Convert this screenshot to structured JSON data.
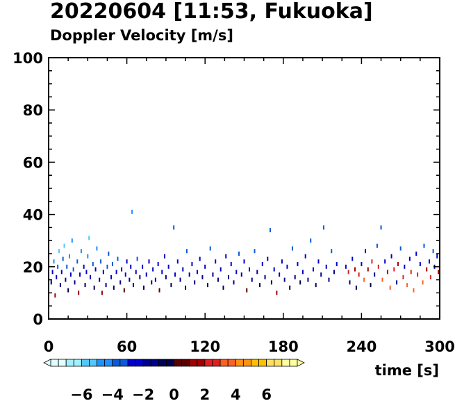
{
  "chart_data": {
    "type": "scatter",
    "title": "20220604 [11:53, Fukuoka]",
    "subtitle": "Doppler Velocity [m/s]",
    "xlabel": "time [s]",
    "ylabel": "",
    "xlim": [
      0,
      300
    ],
    "ylim": [
      0,
      100
    ],
    "x_ticks": [
      0,
      60,
      120,
      180,
      240,
      300
    ],
    "y_ticks": [
      0,
      20,
      40,
      60,
      80,
      100
    ],
    "grid": false,
    "colorbar": {
      "orientation": "horizontal",
      "position": "bottom",
      "vmin": -8,
      "vmax": 8,
      "step": 0.5,
      "ticks": [
        -6,
        -4,
        -2,
        0,
        2,
        4,
        6
      ],
      "tick_labels": [
        "−6",
        "−4",
        "−2",
        "0",
        "2",
        "4",
        "6"
      ],
      "colors_negative": [
        "#e0ffff",
        "#a0f0ff",
        "#50c8ff",
        "#1e90ff",
        "#0a5ad8",
        "#0000cd",
        "#00008b",
        "#000050"
      ],
      "colors_positive": [
        "#5a0000",
        "#a00000",
        "#e02020",
        "#ff6020",
        "#ff9010",
        "#ffc000",
        "#ffe060",
        "#ffffa0"
      ]
    },
    "points": [
      {
        "x": 2,
        "y": 14,
        "v": -2.0
      },
      {
        "x": 3,
        "y": 18,
        "v": -3.0
      },
      {
        "x": 4,
        "y": 22,
        "v": -4.5
      },
      {
        "x": 5,
        "y": 9,
        "v": 1.8
      },
      {
        "x": 6,
        "y": 16,
        "v": -2.5
      },
      {
        "x": 7,
        "y": 20,
        "v": -3.5
      },
      {
        "x": 8,
        "y": 26,
        "v": -5.5
      },
      {
        "x": 9,
        "y": 13,
        "v": -1.2
      },
      {
        "x": 10,
        "y": 18,
        "v": -3.0
      },
      {
        "x": 11,
        "y": 23,
        "v": -4.0
      },
      {
        "x": 12,
        "y": 28,
        "v": -6.0
      },
      {
        "x": 13,
        "y": 15,
        "v": -2.0
      },
      {
        "x": 14,
        "y": 20,
        "v": -3.5
      },
      {
        "x": 15,
        "y": 11,
        "v": -0.5
      },
      {
        "x": 16,
        "y": 24,
        "v": -4.5
      },
      {
        "x": 17,
        "y": 17,
        "v": -2.8
      },
      {
        "x": 18,
        "y": 30,
        "v": -5.0
      },
      {
        "x": 19,
        "y": 19,
        "v": -3.2
      },
      {
        "x": 20,
        "y": 14,
        "v": -1.5
      },
      {
        "x": 22,
        "y": 22,
        "v": -3.8
      },
      {
        "x": 23,
        "y": 10,
        "v": 1.5
      },
      {
        "x": 24,
        "y": 17,
        "v": -2.6
      },
      {
        "x": 25,
        "y": 26,
        "v": -4.8
      },
      {
        "x": 27,
        "y": 20,
        "v": -3.0
      },
      {
        "x": 28,
        "y": 13,
        "v": -1.0
      },
      {
        "x": 29,
        "y": 18,
        "v": -2.4
      },
      {
        "x": 30,
        "y": 24,
        "v": -4.2
      },
      {
        "x": 31,
        "y": 31,
        "v": -5.5
      },
      {
        "x": 32,
        "y": 16,
        "v": -2.2
      },
      {
        "x": 34,
        "y": 21,
        "v": -3.4
      },
      {
        "x": 35,
        "y": 12,
        "v": -0.8
      },
      {
        "x": 36,
        "y": 19,
        "v": -2.9
      },
      {
        "x": 37,
        "y": 27,
        "v": -4.6
      },
      {
        "x": 39,
        "y": 15,
        "v": -1.8
      },
      {
        "x": 40,
        "y": 22,
        "v": -3.6
      },
      {
        "x": 41,
        "y": 10,
        "v": 1.2
      },
      {
        "x": 42,
        "y": 18,
        "v": -2.7
      },
      {
        "x": 44,
        "y": 13,
        "v": -1.4
      },
      {
        "x": 45,
        "y": 20,
        "v": -3.1
      },
      {
        "x": 46,
        "y": 25,
        "v": -4.0
      },
      {
        "x": 48,
        "y": 16,
        "v": -2.3
      },
      {
        "x": 49,
        "y": 21,
        "v": -3.3
      },
      {
        "x": 50,
        "y": 12,
        "v": -0.6
      },
      {
        "x": 52,
        "y": 18,
        "v": -2.5
      },
      {
        "x": 53,
        "y": 23,
        "v": -3.5
      },
      {
        "x": 55,
        "y": 14,
        "v": -1.6
      },
      {
        "x": 56,
        "y": 19,
        "v": -2.8
      },
      {
        "x": 58,
        "y": 11,
        "v": 0.8
      },
      {
        "x": 59,
        "y": 17,
        "v": -2.2
      },
      {
        "x": 60,
        "y": 22,
        "v": -3.0
      },
      {
        "x": 62,
        "y": 15,
        "v": -1.9
      },
      {
        "x": 63,
        "y": 20,
        "v": -2.6
      },
      {
        "x": 64,
        "y": 41,
        "v": -4.2
      },
      {
        "x": 65,
        "y": 13,
        "v": -1.1
      },
      {
        "x": 67,
        "y": 18,
        "v": -2.4
      },
      {
        "x": 68,
        "y": 23,
        "v": -3.2
      },
      {
        "x": 70,
        "y": 16,
        "v": -2.0
      },
      {
        "x": 72,
        "y": 20,
        "v": -2.7
      },
      {
        "x": 73,
        "y": 12,
        "v": -0.7
      },
      {
        "x": 75,
        "y": 17,
        "v": -2.1
      },
      {
        "x": 77,
        "y": 22,
        "v": -2.9
      },
      {
        "x": 79,
        "y": 14,
        "v": -1.3
      },
      {
        "x": 80,
        "y": 19,
        "v": -2.5
      },
      {
        "x": 82,
        "y": 15,
        "v": -1.7
      },
      {
        "x": 84,
        "y": 21,
        "v": -2.8
      },
      {
        "x": 85,
        "y": 11,
        "v": 0.6
      },
      {
        "x": 87,
        "y": 18,
        "v": -2.3
      },
      {
        "x": 89,
        "y": 24,
        "v": -3.0
      },
      {
        "x": 90,
        "y": 16,
        "v": -1.9
      },
      {
        "x": 92,
        "y": 20,
        "v": -2.6
      },
      {
        "x": 94,
        "y": 13,
        "v": -1.0
      },
      {
        "x": 96,
        "y": 35,
        "v": -3.8
      },
      {
        "x": 97,
        "y": 17,
        "v": -2.1
      },
      {
        "x": 99,
        "y": 22,
        "v": -2.7
      },
      {
        "x": 101,
        "y": 15,
        "v": -1.6
      },
      {
        "x": 103,
        "y": 19,
        "v": -2.3
      },
      {
        "x": 105,
        "y": 12,
        "v": -0.5
      },
      {
        "x": 106,
        "y": 26,
        "v": -3.3
      },
      {
        "x": 108,
        "y": 17,
        "v": -2.0
      },
      {
        "x": 110,
        "y": 21,
        "v": -2.6
      },
      {
        "x": 112,
        "y": 14,
        "v": -1.2
      },
      {
        "x": 114,
        "y": 18,
        "v": -2.2
      },
      {
        "x": 116,
        "y": 23,
        "v": -2.9
      },
      {
        "x": 118,
        "y": 16,
        "v": -1.8
      },
      {
        "x": 120,
        "y": 20,
        "v": -2.5
      },
      {
        "x": 122,
        "y": 13,
        "v": -0.9
      },
      {
        "x": 124,
        "y": 27,
        "v": -3.4
      },
      {
        "x": 126,
        "y": 17,
        "v": -2.0
      },
      {
        "x": 128,
        "y": 22,
        "v": -2.7
      },
      {
        "x": 130,
        "y": 15,
        "v": -1.5
      },
      {
        "x": 132,
        "y": 19,
        "v": -2.3
      },
      {
        "x": 134,
        "y": 12,
        "v": -0.6
      },
      {
        "x": 136,
        "y": 24,
        "v": -3.0
      },
      {
        "x": 138,
        "y": 16,
        "v": -1.8
      },
      {
        "x": 140,
        "y": 21,
        "v": -2.5
      },
      {
        "x": 142,
        "y": 14,
        "v": -1.1
      },
      {
        "x": 144,
        "y": 18,
        "v": -2.1
      },
      {
        "x": 146,
        "y": 25,
        "v": -3.1
      },
      {
        "x": 148,
        "y": 17,
        "v": -1.9
      },
      {
        "x": 150,
        "y": 22,
        "v": -2.6
      },
      {
        "x": 152,
        "y": 11,
        "v": 0.9
      },
      {
        "x": 154,
        "y": 19,
        "v": -2.2
      },
      {
        "x": 156,
        "y": 15,
        "v": -1.4
      },
      {
        "x": 158,
        "y": 26,
        "v": -3.2
      },
      {
        "x": 160,
        "y": 18,
        "v": -2.0
      },
      {
        "x": 162,
        "y": 13,
        "v": -0.8
      },
      {
        "x": 164,
        "y": 21,
        "v": -2.5
      },
      {
        "x": 166,
        "y": 16,
        "v": -1.7
      },
      {
        "x": 168,
        "y": 23,
        "v": -2.8
      },
      {
        "x": 170,
        "y": 34,
        "v": -3.6
      },
      {
        "x": 171,
        "y": 14,
        "v": -1.0
      },
      {
        "x": 173,
        "y": 19,
        "v": -2.3
      },
      {
        "x": 175,
        "y": 10,
        "v": 1.4
      },
      {
        "x": 177,
        "y": 17,
        "v": -1.9
      },
      {
        "x": 179,
        "y": 22,
        "v": -2.6
      },
      {
        "x": 181,
        "y": 15,
        "v": -1.3
      },
      {
        "x": 183,
        "y": 20,
        "v": -2.4
      },
      {
        "x": 185,
        "y": 12,
        "v": -0.4
      },
      {
        "x": 187,
        "y": 27,
        "v": -3.3
      },
      {
        "x": 189,
        "y": 16,
        "v": -1.6
      },
      {
        "x": 191,
        "y": 21,
        "v": -2.5
      },
      {
        "x": 193,
        "y": 14,
        "v": -1.0
      },
      {
        "x": 195,
        "y": 18,
        "v": -2.1
      },
      {
        "x": 197,
        "y": 24,
        "v": -2.9
      },
      {
        "x": 199,
        "y": 15,
        "v": -1.2
      },
      {
        "x": 201,
        "y": 30,
        "v": -3.4
      },
      {
        "x": 203,
        "y": 19,
        "v": -2.2
      },
      {
        "x": 205,
        "y": 13,
        "v": -0.6
      },
      {
        "x": 207,
        "y": 22,
        "v": -2.7
      },
      {
        "x": 209,
        "y": 17,
        "v": -1.8
      },
      {
        "x": 211,
        "y": 35,
        "v": -3.8
      },
      {
        "x": 213,
        "y": 20,
        "v": -2.3
      },
      {
        "x": 215,
        "y": 15,
        "v": -1.1
      },
      {
        "x": 217,
        "y": 26,
        "v": -3.1
      },
      {
        "x": 219,
        "y": 18,
        "v": -2.0
      },
      {
        "x": 221,
        "y": 21,
        "v": -2.4
      },
      {
        "x": 228,
        "y": 20,
        "v": -2.3
      },
      {
        "x": 230,
        "y": 18,
        "v": 2.5
      },
      {
        "x": 231,
        "y": 14,
        "v": -1.5
      },
      {
        "x": 233,
        "y": 23,
        "v": -2.8
      },
      {
        "x": 235,
        "y": 19,
        "v": 1.8
      },
      {
        "x": 236,
        "y": 12,
        "v": -0.5
      },
      {
        "x": 238,
        "y": 17,
        "v": 2.2
      },
      {
        "x": 240,
        "y": 21,
        "v": -2.4
      },
      {
        "x": 242,
        "y": 15,
        "v": 3.0
      },
      {
        "x": 243,
        "y": 26,
        "v": -3.0
      },
      {
        "x": 245,
        "y": 19,
        "v": 1.5
      },
      {
        "x": 247,
        "y": 13,
        "v": -0.8
      },
      {
        "x": 248,
        "y": 22,
        "v": 2.8
      },
      {
        "x": 250,
        "y": 17,
        "v": -1.9
      },
      {
        "x": 252,
        "y": 28,
        "v": -3.4
      },
      {
        "x": 253,
        "y": 20,
        "v": 2.0
      },
      {
        "x": 255,
        "y": 35,
        "v": -3.9
      },
      {
        "x": 256,
        "y": 15,
        "v": 3.2
      },
      {
        "x": 258,
        "y": 22,
        "v": -2.6
      },
      {
        "x": 260,
        "y": 18,
        "v": 1.2
      },
      {
        "x": 262,
        "y": 12,
        "v": 3.5
      },
      {
        "x": 263,
        "y": 24,
        "v": -2.9
      },
      {
        "x": 265,
        "y": 19,
        "v": 2.4
      },
      {
        "x": 267,
        "y": 14,
        "v": -1.1
      },
      {
        "x": 268,
        "y": 21,
        "v": 1.7
      },
      {
        "x": 270,
        "y": 27,
        "v": -3.2
      },
      {
        "x": 272,
        "y": 16,
        "v": 2.9
      },
      {
        "x": 273,
        "y": 20,
        "v": -2.2
      },
      {
        "x": 275,
        "y": 13,
        "v": 3.3
      },
      {
        "x": 277,
        "y": 23,
        "v": -2.7
      },
      {
        "x": 278,
        "y": 18,
        "v": 2.1
      },
      {
        "x": 280,
        "y": 11,
        "v": 3.8
      },
      {
        "x": 282,
        "y": 25,
        "v": -3.0
      },
      {
        "x": 283,
        "y": 17,
        "v": 2.6
      },
      {
        "x": 285,
        "y": 21,
        "v": -2.3
      },
      {
        "x": 287,
        "y": 14,
        "v": 3.1
      },
      {
        "x": 288,
        "y": 28,
        "v": -3.3
      },
      {
        "x": 290,
        "y": 19,
        "v": 1.9
      },
      {
        "x": 292,
        "y": 22,
        "v": -2.5
      },
      {
        "x": 293,
        "y": 16,
        "v": 2.7
      },
      {
        "x": 295,
        "y": 26,
        "v": -3.1
      },
      {
        "x": 296,
        "y": 20,
        "v": -2.2
      },
      {
        "x": 298,
        "y": 24,
        "v": -2.8
      },
      {
        "x": 299,
        "y": 18,
        "v": 1.6
      }
    ]
  }
}
